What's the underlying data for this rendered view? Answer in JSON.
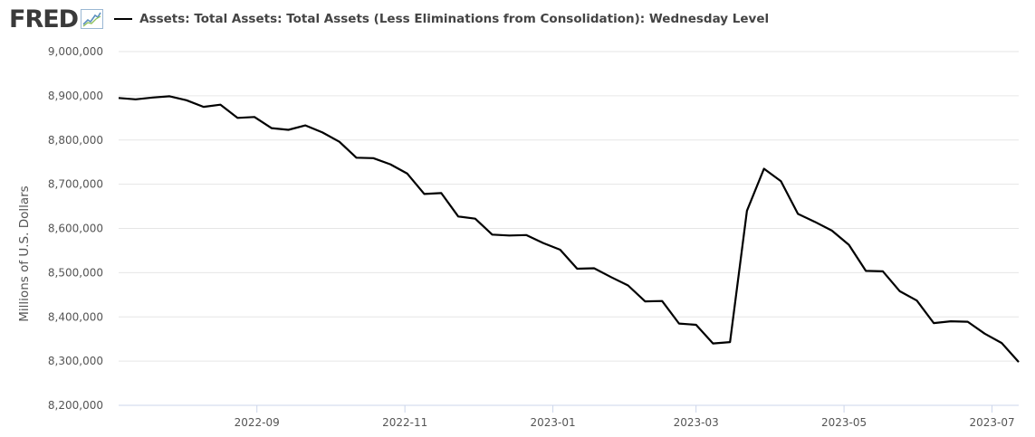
{
  "header": {
    "logo_text": "FRED",
    "logo_icon": "chart-trend-icon",
    "legend_label": "Assets: Total Assets: Total Assets (Less Eliminations from Consolidation): Wednesday Level"
  },
  "chart_data": {
    "type": "line",
    "title": "Assets: Total Assets: Total Assets (Less Eliminations from Consolidation): Wednesday Level",
    "xlabel": "",
    "ylabel": "Millions of U.S. Dollars",
    "ylim": [
      8200000,
      9000000
    ],
    "y_ticks": [
      9000000,
      8900000,
      8800000,
      8700000,
      8600000,
      8500000,
      8400000,
      8300000,
      8200000
    ],
    "y_tick_labels": [
      "9,000,000",
      "8,900,000",
      "8,800,000",
      "8,700,000",
      "8,600,000",
      "8,500,000",
      "8,400,000",
      "8,300,000",
      "8,200,000"
    ],
    "x_tick_labels": [
      "2022-09",
      "2022-11",
      "2023-01",
      "2023-03",
      "2023-05",
      "2023-07"
    ],
    "x_ticks": [
      "2022-09-01",
      "2022-11-01",
      "2023-01-01",
      "2023-03-01",
      "2023-05-01",
      "2023-07-01"
    ],
    "xlim": [
      "2022-07-06",
      "2023-07-12"
    ],
    "grid": true,
    "line_color": "#000000",
    "series": [
      {
        "x": [
          "2022-07-06",
          "2022-07-13",
          "2022-07-20",
          "2022-07-27",
          "2022-08-03",
          "2022-08-10",
          "2022-08-17",
          "2022-08-24",
          "2022-08-31",
          "2022-09-07",
          "2022-09-14",
          "2022-09-21",
          "2022-09-28",
          "2022-10-05",
          "2022-10-12",
          "2022-10-19",
          "2022-10-26",
          "2022-11-02",
          "2022-11-09",
          "2022-11-16",
          "2022-11-23",
          "2022-11-30",
          "2022-12-07",
          "2022-12-14",
          "2022-12-21",
          "2022-12-28",
          "2023-01-04",
          "2023-01-11",
          "2023-01-18",
          "2023-01-25",
          "2023-02-01",
          "2023-02-08",
          "2023-02-15",
          "2023-02-22",
          "2023-03-01",
          "2023-03-08",
          "2023-03-15",
          "2023-03-22",
          "2023-03-29",
          "2023-04-05",
          "2023-04-12",
          "2023-04-19",
          "2023-04-26",
          "2023-05-03",
          "2023-05-10",
          "2023-05-17",
          "2023-05-24",
          "2023-05-31",
          "2023-06-07",
          "2023-06-14",
          "2023-06-21",
          "2023-06-28",
          "2023-07-05",
          "2023-07-12"
        ],
        "values": [
          8895000,
          8892000,
          8896000,
          8899000,
          8890000,
          8875000,
          8880000,
          8850000,
          8852000,
          8827000,
          8823000,
          8833000,
          8817000,
          8796000,
          8760000,
          8759000,
          8745000,
          8724000,
          8678000,
          8680000,
          8627000,
          8622000,
          8586000,
          8584000,
          8585000,
          8567000,
          8552000,
          8509000,
          8510000,
          8490000,
          8471000,
          8435000,
          8436000,
          8385000,
          8382000,
          8340000,
          8343000,
          8640000,
          8735000,
          8707000,
          8633000,
          8615000,
          8595000,
          8563000,
          8504000,
          8503000,
          8458000,
          8437000,
          8386000,
          8390000,
          8389000,
          8362000,
          8341000,
          8298000
        ]
      }
    ]
  }
}
